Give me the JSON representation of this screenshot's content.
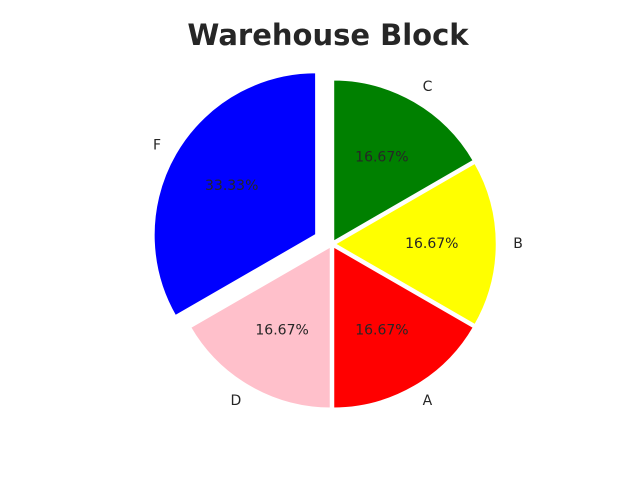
{
  "chart_data": {
    "type": "pie",
    "title": "Warehouse Block",
    "categories": [
      "A",
      "B",
      "C",
      "F",
      "D"
    ],
    "values": [
      16.67,
      16.67,
      16.67,
      33.33,
      16.67
    ],
    "value_labels": [
      "16.67%",
      "16.67%",
      "16.67%",
      "33.33%",
      "16.67%"
    ],
    "colors": [
      "#ff0000",
      "#ffff00",
      "#008000",
      "#0000ff",
      "#ffc0cb"
    ],
    "exploded": [
      "F"
    ],
    "start_angle_deg": 270,
    "direction": "counterclockwise",
    "legend": "none"
  }
}
